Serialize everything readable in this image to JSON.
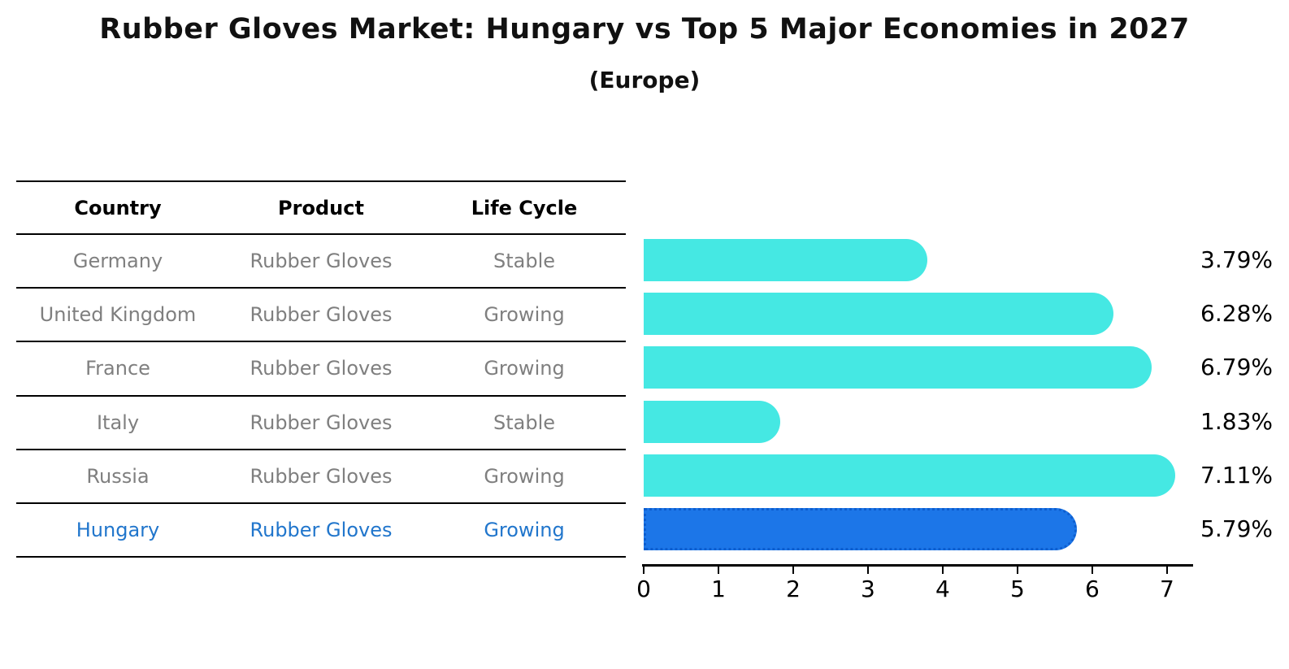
{
  "title": "Rubber Gloves Market: Hungary vs Top 5 Major Economies in 2027",
  "subtitle": "(Europe)",
  "table": {
    "headers": [
      "Country",
      "Product",
      "Life Cycle"
    ],
    "rows": [
      {
        "country": "Germany",
        "product": "Rubber Gloves",
        "life_cycle": "Stable",
        "highlighted": false
      },
      {
        "country": "United Kingdom",
        "product": "Rubber Gloves",
        "life_cycle": "Growing",
        "highlighted": false
      },
      {
        "country": "France",
        "product": "Rubber Gloves",
        "life_cycle": "Growing",
        "highlighted": false
      },
      {
        "country": "Italy",
        "product": "Rubber Gloves",
        "life_cycle": "Stable",
        "highlighted": false
      },
      {
        "country": "Russia",
        "product": "Rubber Gloves",
        "life_cycle": "Growing",
        "highlighted": false
      },
      {
        "country": "Hungary",
        "product": "Rubber Gloves",
        "life_cycle": "Growing",
        "highlighted": true
      }
    ]
  },
  "chart_data": {
    "type": "bar",
    "orientation": "horizontal",
    "categories": [
      "Germany",
      "United Kingdom",
      "France",
      "Italy",
      "Russia",
      "Hungary"
    ],
    "values": [
      3.79,
      6.28,
      6.79,
      1.83,
      7.11,
      5.79
    ],
    "value_labels": [
      "3.79%",
      "6.28%",
      "6.79%",
      "1.83%",
      "7.11%",
      "5.79%"
    ],
    "x_ticks": [
      "0",
      "1",
      "2",
      "3",
      "4",
      "5",
      "6",
      "7"
    ],
    "xlim": [
      0,
      7.37
    ],
    "grid": false,
    "legend": "none",
    "bar_color": "#45e8e3",
    "highlight_color": "#1c76e8",
    "highlight_edge_color": "#0d5ecf",
    "highlight_index": 5,
    "highlight_text_color": "#2176cc",
    "row_text_color": "#7f7f7f",
    "title": "Rubber Gloves Market: Hungary vs Top 5 Major Economies in 2027",
    "subtitle": "(Europe)",
    "xlabel": "",
    "ylabel": ""
  }
}
